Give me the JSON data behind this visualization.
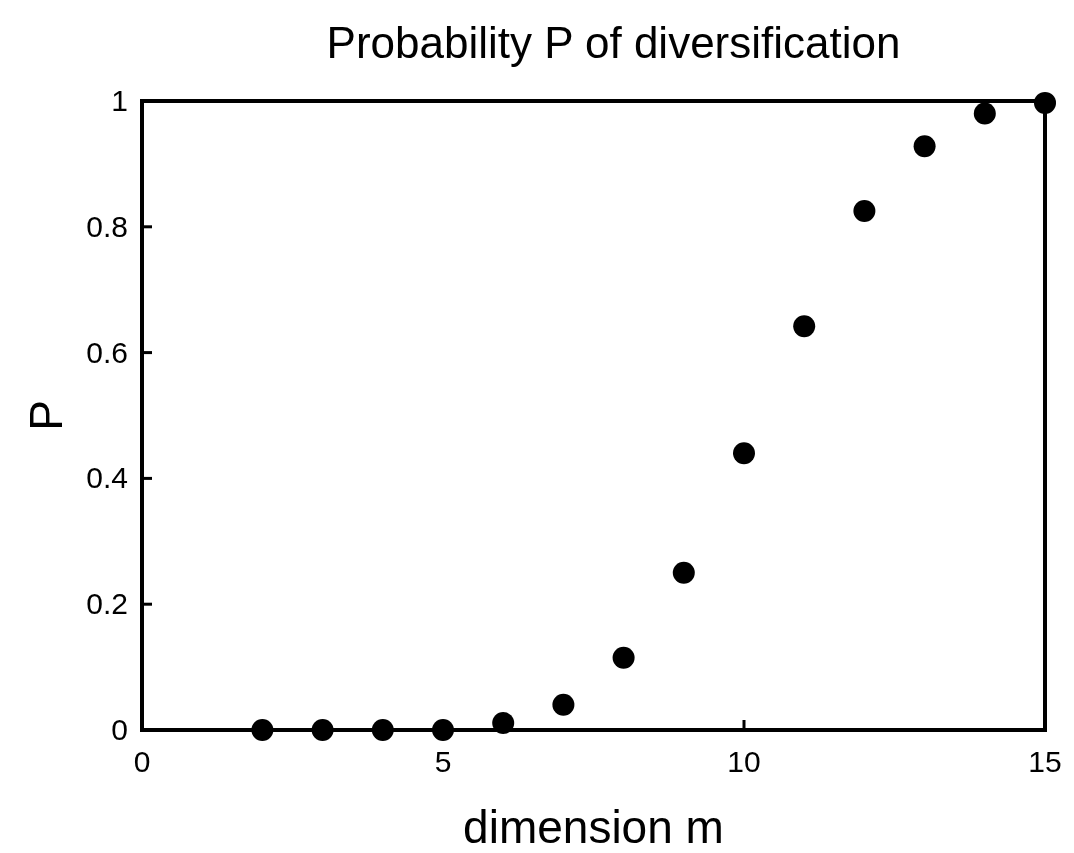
{
  "chart_data": {
    "type": "scatter",
    "title": "Probability P of diversification",
    "xlabel": "dimension m",
    "ylabel": "P",
    "x": [
      2,
      3,
      4,
      5,
      6,
      7,
      8,
      9,
      10,
      11,
      12,
      13,
      14,
      15
    ],
    "series": [
      {
        "color": "#000000",
        "values": [
          0,
          0,
          0,
          0,
          0.011,
          0.04,
          0.115,
          0.25,
          0.44,
          0.642,
          0.825,
          0.928,
          0.98,
          0.997
        ]
      }
    ],
    "xlim": [
      0,
      15
    ],
    "xticks": [
      0,
      5,
      10,
      15
    ],
    "ylim": [
      0,
      1
    ],
    "yticks": [
      0,
      {
        "value": 0.2,
        "label": "0.2"
      },
      {
        "value": 0.4,
        "label": "0.4"
      },
      {
        "value": 0.6,
        "label": "0.6"
      },
      {
        "value": 0.8,
        "label": "0.8"
      },
      1
    ],
    "grid": false,
    "marker": "circle"
  }
}
